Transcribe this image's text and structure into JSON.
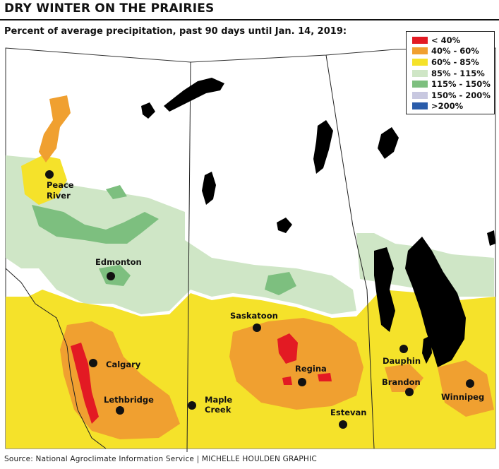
{
  "title": "DRY WINTER ON THE PRAIRIES",
  "subtitle": "Percent of average precipitation, past 90 days until Jan. 14, 2019:",
  "legend": [
    {
      "label": "< 40%",
      "color": "#e31a23"
    },
    {
      "label": "40% - 60%",
      "color": "#f0a030"
    },
    {
      "label": "60% - 85%",
      "color": "#f5e22a"
    },
    {
      "label": "85% - 115%",
      "color": "#cfe6c6"
    },
    {
      "label": "115% - 150%",
      "color": "#7dbf7f"
    },
    {
      "label": "150% - 200%",
      "color": "#c8c8e0"
    },
    {
      "label": ">200%",
      "color": "#2a5caa"
    }
  ],
  "cities": {
    "peace_river_line1": "Peace",
    "peace_river_line2": "River",
    "edmonton": "Edmonton",
    "saskatoon": "Saskatoon",
    "calgary": "Calgary",
    "regina": "Regina",
    "dauphin": "Dauphin",
    "lethbridge": "Lethbridge",
    "maple_creek_line1": "Maple",
    "maple_creek_line2": "Creek",
    "brandon": "Brandon",
    "winnipeg": "Winnipeg",
    "estevan": "Estevan"
  },
  "source": "Source: National Agroclimate Information Service  |  MICHELLE HOULDEN GRAPHIC"
}
